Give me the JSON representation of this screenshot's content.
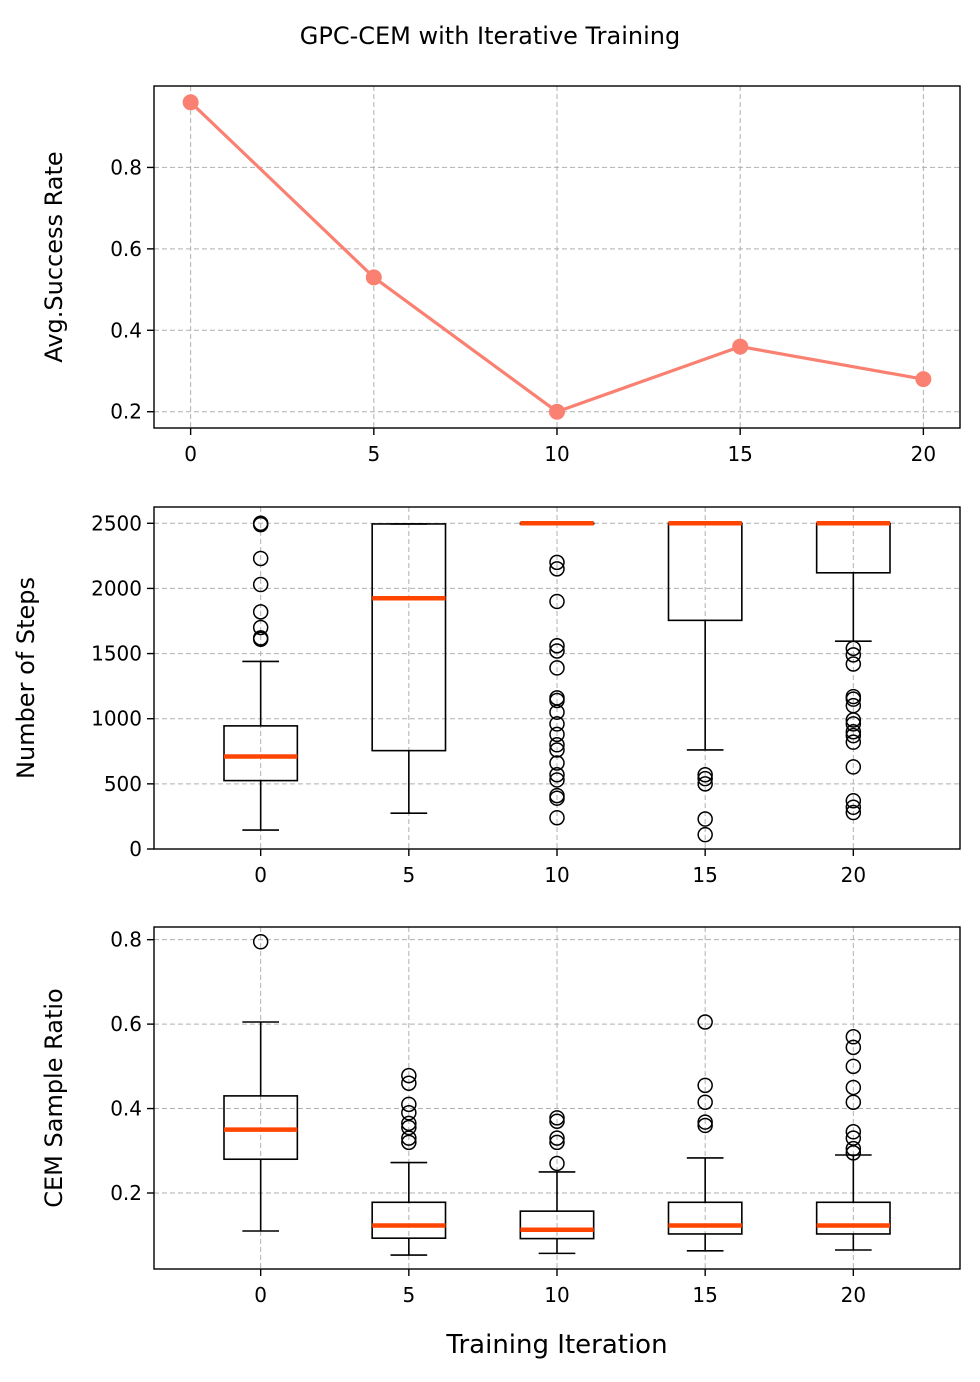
{
  "chart_data": {
    "title": "GPC-CEM with Iterative Training",
    "xlabel": "Training Iteration",
    "panels": [
      {
        "type": "line",
        "ylabel": "Avg.Success Rate",
        "color": "#fa8072",
        "xlim": [
          -1,
          21
        ],
        "ylim": [
          0.16,
          1.0
        ],
        "xticks": [
          0,
          5,
          10,
          15,
          20
        ],
        "yticks": [
          0.2,
          0.4,
          0.6,
          0.8
        ],
        "ytick_labels": [
          "0.2",
          "0.4",
          "0.6",
          "0.8"
        ],
        "x": [
          0,
          5,
          10,
          15,
          20
        ],
        "y": [
          0.96,
          0.53,
          0.2,
          0.36,
          0.28
        ]
      },
      {
        "type": "box",
        "ylabel": "Number of Steps",
        "median_color": "#ff4500",
        "positions": [
          0,
          5,
          10,
          15,
          20
        ],
        "position_labels": [
          "0",
          "5",
          "10",
          "15",
          "20"
        ],
        "ylim": [
          0,
          2625
        ],
        "yticks": [
          0,
          500,
          1000,
          1500,
          2000,
          2500
        ],
        "ytick_labels": [
          "0",
          "500",
          "1000",
          "1500",
          "2000",
          "2500"
        ],
        "boxes": [
          {
            "whislo": 145,
            "q1": 525,
            "med": 710,
            "q3": 945,
            "whishi": 1440,
            "fliers": [
              1610,
              1620,
              1700,
              1820,
              2030,
              2230,
              2490,
              2500
            ]
          },
          {
            "whislo": 275,
            "q1": 755,
            "med": 1925,
            "q3": 2495,
            "whishi": 2495,
            "fliers": []
          },
          {
            "whislo": 2500,
            "q1": 2500,
            "med": 2500,
            "q3": 2500,
            "whishi": 2500,
            "fliers": [
              240,
              390,
              410,
              530,
              570,
              660,
              760,
              800,
              880,
              960,
              1050,
              1140,
              1160,
              1390,
              1520,
              1560,
              1900,
              2150,
              2200
            ]
          },
          {
            "whislo": 760,
            "q1": 1755,
            "med": 2500,
            "q3": 2500,
            "whishi": 2500,
            "fliers": [
              110,
              230,
              500,
              540,
              570
            ]
          },
          {
            "whislo": 1595,
            "q1": 2120,
            "med": 2500,
            "q3": 2500,
            "whishi": 2500,
            "fliers": [
              280,
              320,
              370,
              630,
              820,
              870,
              900,
              960,
              990,
              1100,
              1150,
              1170,
              1420,
              1490,
              1540
            ]
          }
        ]
      },
      {
        "type": "box",
        "ylabel": "CEM Sample Ratio",
        "median_color": "#ff4500",
        "positions": [
          0,
          5,
          10,
          15,
          20
        ],
        "position_labels": [
          "0",
          "5",
          "10",
          "15",
          "20"
        ],
        "ylim": [
          0.02,
          0.83
        ],
        "yticks": [
          0.2,
          0.4,
          0.6,
          0.8
        ],
        "ytick_labels": [
          "0.2",
          "0.4",
          "0.6",
          "0.8"
        ],
        "boxes": [
          {
            "whislo": 0.11,
            "q1": 0.28,
            "med": 0.35,
            "q3": 0.43,
            "whishi": 0.605,
            "fliers": [
              0.795
            ]
          },
          {
            "whislo": 0.053,
            "q1": 0.093,
            "med": 0.123,
            "q3": 0.178,
            "whishi": 0.272,
            "fliers": [
              0.32,
              0.33,
              0.355,
              0.365,
              0.39,
              0.41,
              0.46,
              0.478
            ]
          },
          {
            "whislo": 0.057,
            "q1": 0.092,
            "med": 0.113,
            "q3": 0.157,
            "whishi": 0.25,
            "fliers": [
              0.27,
              0.32,
              0.33,
              0.37,
              0.378
            ]
          },
          {
            "whislo": 0.063,
            "q1": 0.103,
            "med": 0.123,
            "q3": 0.178,
            "whishi": 0.283,
            "fliers": [
              0.36,
              0.368,
              0.415,
              0.455,
              0.605
            ]
          },
          {
            "whislo": 0.065,
            "q1": 0.103,
            "med": 0.123,
            "q3": 0.178,
            "whishi": 0.29,
            "fliers": [
              0.295,
              0.305,
              0.33,
              0.345,
              0.415,
              0.45,
              0.5,
              0.545,
              0.57
            ]
          }
        ]
      }
    ]
  }
}
